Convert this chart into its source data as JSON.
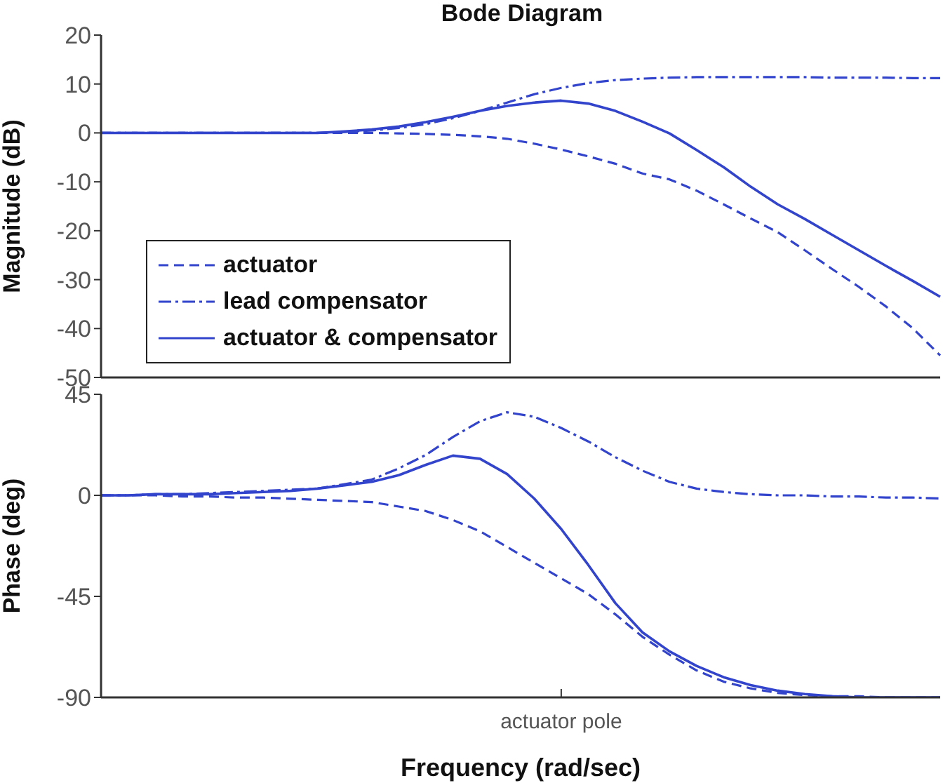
{
  "chart_data": [
    {
      "type": "line",
      "title": "Bode Diagram",
      "ylabel": "Magnitude (dB)",
      "categories": [
        null,
        null,
        null,
        null,
        null,
        null,
        null,
        null,
        null,
        null,
        null,
        null,
        null,
        null,
        null,
        null,
        null,
        null,
        null,
        null,
        null,
        null,
        null,
        null,
        null,
        null,
        null,
        null,
        null,
        null,
        null,
        null
      ],
      "series": [
        {
          "name": "actuator",
          "color": "#3344cc",
          "line_style": "dashed",
          "values": [
            0,
            0,
            0,
            0,
            0,
            0,
            0,
            0,
            0,
            0,
            0,
            -0.1,
            -0.2,
            -0.4,
            -0.7,
            -1.2,
            -2.2,
            -3.4,
            -4.8,
            -6.3,
            -8.3,
            -9.5,
            -11.8,
            -14.6,
            -17.5,
            -20.3,
            -24,
            -27.8,
            -31.5,
            -35.5,
            -40,
            -45.5
          ]
        },
        {
          "name": "lead compensator",
          "color": "#3344cc",
          "line_style": "dashdot",
          "values": [
            0,
            0,
            0,
            0,
            0,
            0,
            0,
            0,
            0,
            0.2,
            0.5,
            1,
            1.8,
            3,
            4.5,
            6.2,
            7.9,
            9.2,
            10.2,
            10.8,
            11.1,
            11.3,
            11.4,
            11.4,
            11.4,
            11.4,
            11.4,
            11.3,
            11.3,
            11.3,
            11.2,
            11.2
          ]
        },
        {
          "name": "actuator & compensator",
          "color": "#3344cc",
          "line_style": "solid",
          "values": [
            0,
            0,
            0,
            0,
            0,
            0,
            0,
            0,
            0,
            0.3,
            0.7,
            1.3,
            2.2,
            3.3,
            4.5,
            5.5,
            6.2,
            6.6,
            6,
            4.5,
            2.3,
            -0.1,
            -3.5,
            -7,
            -11,
            -14.6,
            -17.6,
            -20.8,
            -24,
            -27.2,
            -30.3,
            -33.5
          ]
        }
      ],
      "ylim": [
        -50,
        20
      ],
      "yticks": [
        -50,
        -40,
        -30,
        -20,
        -10,
        0,
        10,
        20
      ],
      "tick_labels": "y",
      "legend": "bottom left",
      "grid": false
    },
    {
      "type": "line",
      "xlabel": "Frequency  (rad/sec)",
      "ylabel": "Phase (deg)",
      "categories": [
        null,
        null,
        null,
        null,
        null,
        null,
        null,
        null,
        null,
        null,
        null,
        null,
        null,
        null,
        null,
        null,
        null,
        "actuator pole",
        null,
        null,
        null,
        null,
        null,
        null,
        null,
        null,
        null,
        null,
        null,
        null,
        null,
        null
      ],
      "series": [
        {
          "color": "#3344cc",
          "line_style": "dashed",
          "values": [
            0,
            0,
            0,
            -0.5,
            -0.5,
            -1,
            -1,
            -1.5,
            -2,
            -2.5,
            -3,
            -5,
            -7,
            -11,
            -16,
            -23,
            -30,
            -37,
            -44,
            -53,
            -63,
            -71,
            -78,
            -83,
            -86,
            -88,
            -89,
            -89.5,
            -89.5,
            -90,
            -90,
            -90
          ]
        },
        {
          "color": "#3344cc",
          "line_style": "dashdot",
          "values": [
            0,
            0,
            0.5,
            0.5,
            1,
            1.5,
            2,
            2.5,
            3,
            5,
            7,
            12,
            18,
            26,
            33,
            37,
            35,
            30,
            24,
            17,
            11,
            6,
            3,
            1.5,
            0.5,
            0,
            0,
            -0.5,
            -0.5,
            -1,
            -1,
            -1.4
          ]
        },
        {
          "color": "#3344cc",
          "line_style": "solid",
          "values": [
            0,
            0,
            0.5,
            0.5,
            0.5,
            1,
            1.5,
            2,
            3,
            4.5,
            6,
            9,
            13.6,
            17.7,
            16.3,
            9.5,
            -1.4,
            -15,
            -31,
            -48,
            -61,
            -69.5,
            -76,
            -81,
            -84.5,
            -87,
            -88.5,
            -89.5,
            -90,
            -90,
            -90,
            -90
          ]
        }
      ],
      "ylim": [
        -90,
        45
      ],
      "yticks": [
        -90,
        -45,
        0,
        45
      ],
      "legend": false,
      "grid": false
    }
  ]
}
